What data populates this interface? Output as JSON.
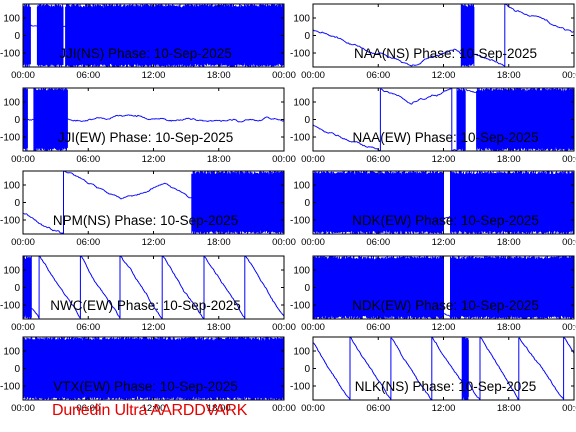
{
  "footer": "Dunedin Ultra AARDDVARK",
  "colors": {
    "trace": "#0000ff",
    "frame": "#000000",
    "footer": "#e60000",
    "background": "#ffffff"
  },
  "chart_data": [
    {
      "type": "line",
      "title": "JJI(NS) Phase: 10-Sep-2025",
      "column": "left",
      "row": 0,
      "character": "noisy-dense",
      "x_ticks": [
        "00:00",
        "06:00",
        "12:00",
        "18:00",
        "00:00"
      ],
      "y_ticks": [
        100,
        0,
        -100
      ],
      "ylim": [
        -180,
        180
      ],
      "xlim_hours": [
        0,
        24
      ],
      "dense_spans_hours": [
        [
          0,
          0.7
        ],
        [
          1.3,
          3.7
        ],
        [
          3.9,
          24
        ]
      ]
    },
    {
      "type": "line",
      "title": "NAA(NS) Phase: 10-Sep-2025",
      "column": "right",
      "row": 0,
      "character": "drift-wrap",
      "x_ticks": [
        "00:00",
        "06:00",
        "12:00",
        "18:00",
        "00:00"
      ],
      "y_ticks": [
        100,
        0,
        -100
      ],
      "ylim": [
        -180,
        180
      ],
      "xlim_hours": [
        0,
        24
      ],
      "dense_spans_hours": [
        [
          13.6,
          14.8
        ]
      ]
    },
    {
      "type": "line",
      "title": "JJI(EW) Phase: 10-Sep-2025",
      "column": "left",
      "row": 1,
      "character": "noisy-dense",
      "x_ticks": [
        "00:00",
        "06:00",
        "12:00",
        "18:00",
        "00:00"
      ],
      "y_ticks": [
        100,
        0,
        -100
      ],
      "ylim": [
        -180,
        180
      ],
      "xlim_hours": [
        0,
        24
      ],
      "dense_spans_hours": [
        [
          0,
          0.4
        ],
        [
          1.0,
          4.1
        ]
      ]
    },
    {
      "type": "line",
      "title": "NAA(EW) Phase: 10-Sep-2025",
      "column": "right",
      "row": 1,
      "character": "drift-wrap",
      "x_ticks": [
        "00:00",
        "06:00",
        "12:00",
        "18:00",
        "00:00"
      ],
      "y_ticks": [
        100,
        0,
        -100
      ],
      "ylim": [
        -180,
        180
      ],
      "xlim_hours": [
        0,
        24
      ],
      "dense_spans_hours": [
        [
          13.3,
          14.0
        ],
        [
          15.0,
          24
        ]
      ]
    },
    {
      "type": "line",
      "title": "NPM(NS) Phase: 10-Sep-2025",
      "column": "left",
      "row": 2,
      "character": "drift-wrap",
      "x_ticks": [
        "00:00",
        "06:00",
        "12:00",
        "18:00",
        "00:00"
      ],
      "y_ticks": [
        100,
        0,
        -100
      ],
      "ylim": [
        -180,
        180
      ],
      "xlim_hours": [
        0,
        24
      ],
      "dense_spans_hours": [
        [
          15.5,
          24
        ]
      ]
    },
    {
      "type": "line",
      "title": "NDK(EW) Phase: 10-Sep-2025",
      "column": "right",
      "row": 2,
      "character": "noisy-dense",
      "x_ticks": [
        "00:00",
        "06:00",
        "12:00",
        "18:00",
        "00:00"
      ],
      "y_ticks": [
        100,
        0,
        -100
      ],
      "ylim": [
        -180,
        180
      ],
      "xlim_hours": [
        0,
        24
      ],
      "dense_spans_hours": [
        [
          0,
          12
        ],
        [
          12.6,
          24
        ]
      ]
    },
    {
      "type": "line",
      "title": "NWC(EW) Phase: 10-Sep-2025",
      "column": "left",
      "row": 3,
      "character": "sawtooth",
      "x_ticks": [
        "00:00",
        "06:00",
        "12:00",
        "18:00",
        "00:00"
      ],
      "y_ticks": [
        100,
        0,
        -100
      ],
      "ylim": [
        -180,
        180
      ],
      "xlim_hours": [
        0,
        24
      ],
      "dense_spans_hours": [
        [
          0,
          0.8
        ]
      ]
    },
    {
      "type": "line",
      "title": "NDK(EW) Phase: 10-Sep-2025",
      "column": "right",
      "row": 3,
      "character": "noisy-dense",
      "x_ticks": [
        "00:00",
        "06:00",
        "12:00",
        "18:00",
        "00:00"
      ],
      "y_ticks": [
        100,
        0,
        -100
      ],
      "ylim": [
        -180,
        180
      ],
      "xlim_hours": [
        0,
        24
      ],
      "dense_spans_hours": [
        [
          0,
          12
        ],
        [
          12.6,
          24
        ]
      ]
    },
    {
      "type": "line",
      "title": "VTX(EW) Phase: 10-Sep-2025",
      "column": "left",
      "row": 4,
      "character": "noisy-dense",
      "x_ticks": [
        "00:00",
        "06:00",
        "12:00",
        "18:00",
        "00:00"
      ],
      "y_ticks": [
        100,
        0,
        -100
      ],
      "ylim": [
        -180,
        180
      ],
      "xlim_hours": [
        0,
        24
      ],
      "dense_spans_hours": [
        [
          0,
          24
        ]
      ]
    },
    {
      "type": "line",
      "title": "NLK(NS) Phase: 10-Sep-2025",
      "column": "right",
      "row": 4,
      "character": "sawtooth",
      "x_ticks": [
        "00:00",
        "06:00",
        "12:00",
        "18:00",
        "00:00"
      ],
      "y_ticks": [
        100,
        0,
        -100
      ],
      "ylim": [
        -180,
        180
      ],
      "xlim_hours": [
        0,
        24
      ],
      "dense_spans_hours": [
        [
          13.7,
          14.3
        ]
      ]
    }
  ]
}
